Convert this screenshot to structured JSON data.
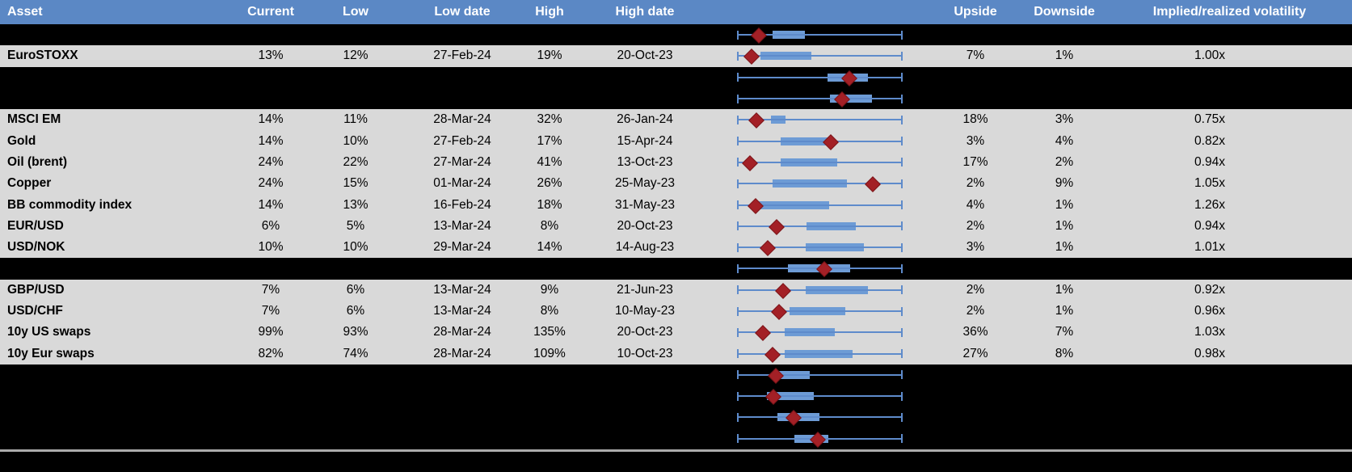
{
  "colors": {
    "header_bg": "#5B88C5",
    "header_text": "#FFFFFF",
    "row_bg": "#D9D9D9",
    "redacted_row_bg": "#000000",
    "box_fill": "#6D9BD5",
    "whisker_line": "#5E8BCB",
    "current_marker": "#A32026",
    "separator_line": "#ABABAB"
  },
  "chart_data": {
    "type": "table",
    "title": "",
    "columns": [
      "Asset",
      "Current",
      "Low",
      "Low date",
      "High",
      "High date",
      "",
      "Upside",
      "Downside",
      "Implied/realized volatility"
    ],
    "legend_position": "none",
    "box_plot_axis": {
      "normalization": "0 = 1y low, 1 = 1y high",
      "marker_glyph": "red diamond = current"
    },
    "rows": [
      {
        "asset": "",
        "current": "",
        "low": "",
        "low_date": "",
        "high": "",
        "high_date": "",
        "upside": "",
        "downside": "",
        "implied": "",
        "hidden": true,
        "box": {
          "q1": 0.215,
          "q3": 0.41,
          "marker": 0.137
        }
      },
      {
        "asset": "EuroSTOXX",
        "current": "13%",
        "low": "12%",
        "low_date": "27-Feb-24",
        "high": "19%",
        "high_date": "20-Oct-23",
        "upside": "7%",
        "downside": "1%",
        "implied": "1.00x",
        "hidden": false,
        "box": {
          "q1": 0.142,
          "q3": 0.448,
          "marker": 0.096
        }
      },
      {
        "asset": "",
        "current": "",
        "low": "",
        "low_date": "",
        "high": "",
        "high_date": "",
        "upside": "",
        "downside": "",
        "implied": "",
        "hidden": true,
        "box": {
          "q1": 0.546,
          "q3": 0.789,
          "marker": 0.687
        }
      },
      {
        "asset": "",
        "current": "",
        "low": "",
        "low_date": "",
        "high": "",
        "high_date": "",
        "upside": "",
        "downside": "",
        "implied": "",
        "hidden": true,
        "box": {
          "q1": 0.562,
          "q3": 0.816,
          "marker": 0.64
        }
      },
      {
        "asset": "MSCI EM",
        "current": "14%",
        "low": "11%",
        "low_date": "28-Mar-24",
        "high": "32%",
        "high_date": "26-Jan-24",
        "upside": "18%",
        "downside": "3%",
        "implied": "0.75x",
        "hidden": false,
        "box": {
          "q1": 0.205,
          "q3": 0.291,
          "marker": 0.122
        }
      },
      {
        "asset": "Gold",
        "current": "14%",
        "low": "10%",
        "low_date": "27-Feb-24",
        "high": "17%",
        "high_date": "15-Apr-24",
        "upside": "3%",
        "downside": "4%",
        "implied": "0.82x",
        "hidden": false,
        "box": {
          "q1": 0.264,
          "q3": 0.549,
          "marker": 0.575
        }
      },
      {
        "asset": "Oil (brent)",
        "current": "24%",
        "low": "22%",
        "low_date": "27-Mar-24",
        "high": "41%",
        "high_date": "13-Oct-23",
        "upside": "17%",
        "downside": "2%",
        "implied": "0.94x",
        "hidden": false,
        "box": {
          "q1": 0.264,
          "q3": 0.606,
          "marker": 0.086
        }
      },
      {
        "asset": "Copper",
        "current": "24%",
        "low": "15%",
        "low_date": "01-Mar-24",
        "high": "26%",
        "high_date": "25-May-23",
        "upside": "2%",
        "downside": "9%",
        "implied": "1.05x",
        "hidden": false,
        "box": {
          "q1": 0.215,
          "q3": 0.663,
          "marker": 0.829
        }
      },
      {
        "asset": "BB commodity index",
        "current": "14%",
        "low": "13%",
        "low_date": "16-Feb-24",
        "high": "18%",
        "high_date": "31-May-23",
        "upside": "4%",
        "downside": "1%",
        "implied": "1.26x",
        "hidden": false,
        "box": {
          "q1": 0.117,
          "q3": 0.557,
          "marker": 0.119
        }
      },
      {
        "asset": "EUR/USD",
        "current": "6%",
        "low": "5%",
        "low_date": "13-Mar-24",
        "high": "8%",
        "high_date": "20-Oct-23",
        "upside": "2%",
        "downside": "1%",
        "implied": "0.94x",
        "hidden": false,
        "box": {
          "q1": 0.419,
          "q3": 0.717,
          "marker": 0.244
        }
      },
      {
        "asset": "USD/NOK",
        "current": "10%",
        "low": "10%",
        "low_date": "29-Mar-24",
        "high": "14%",
        "high_date": "14-Aug-23",
        "upside": "3%",
        "downside": "1%",
        "implied": "1.01x",
        "hidden": false,
        "box": {
          "q1": 0.414,
          "q3": 0.764,
          "marker": 0.194
        }
      },
      {
        "asset": "",
        "current": "",
        "low": "",
        "low_date": "",
        "high": "",
        "high_date": "",
        "upside": "",
        "downside": "",
        "implied": "",
        "hidden": true,
        "box": {
          "q1": 0.308,
          "q3": 0.684,
          "marker": 0.534
        }
      },
      {
        "asset": "GBP/USD",
        "current": "7%",
        "low": "6%",
        "low_date": "13-Mar-24",
        "high": "9%",
        "high_date": "21-Jun-23",
        "upside": "2%",
        "downside": "1%",
        "implied": "0.92x",
        "hidden": false,
        "box": {
          "q1": 0.414,
          "q3": 0.789,
          "marker": 0.284
        }
      },
      {
        "asset": "USD/CHF",
        "current": "7%",
        "low": "6%",
        "low_date": "13-Mar-24",
        "high": "8%",
        "high_date": "10-May-23",
        "upside": "2%",
        "downside": "1%",
        "implied": "0.96x",
        "hidden": false,
        "box": {
          "q1": 0.317,
          "q3": 0.652,
          "marker": 0.263
        }
      },
      {
        "asset": "10y US swaps",
        "current": "99%",
        "low": "93%",
        "low_date": "28-Mar-24",
        "high": "135%",
        "high_date": "20-Oct-23",
        "upside": "36%",
        "downside": "7%",
        "implied": "1.03x",
        "hidden": false,
        "box": {
          "q1": 0.289,
          "q3": 0.588,
          "marker": 0.163
        }
      },
      {
        "asset": "10y Eur swaps",
        "current": "82%",
        "low": "74%",
        "low_date": "28-Mar-24",
        "high": "109%",
        "high_date": "10-Oct-23",
        "upside": "27%",
        "downside": "8%",
        "implied": "0.98x",
        "hidden": false,
        "box": {
          "q1": 0.289,
          "q3": 0.7,
          "marker": 0.223
        }
      },
      {
        "asset": "",
        "current": "",
        "low": "",
        "low_date": "",
        "high": "",
        "high_date": "",
        "upside": "",
        "downside": "",
        "implied": "",
        "hidden": true,
        "box": {
          "q1": 0.215,
          "q3": 0.438,
          "marker": 0.243
        }
      },
      {
        "asset": "",
        "current": "",
        "low": "",
        "low_date": "",
        "high": "",
        "high_date": "",
        "upside": "",
        "downside": "",
        "implied": "",
        "hidden": true,
        "box": {
          "q1": 0.182,
          "q3": 0.464,
          "marker": 0.228
        }
      },
      {
        "asset": "",
        "current": "",
        "low": "",
        "low_date": "",
        "high": "",
        "high_date": "",
        "upside": "",
        "downside": "",
        "implied": "",
        "hidden": true,
        "box": {
          "q1": 0.245,
          "q3": 0.497,
          "marker": 0.349
        }
      },
      {
        "asset": "",
        "current": "",
        "low": "",
        "low_date": "",
        "high": "",
        "high_date": "",
        "upside": "",
        "downside": "",
        "implied": "",
        "hidden": true,
        "box": {
          "q1": 0.346,
          "q3": 0.553,
          "marker": 0.497
        }
      }
    ]
  }
}
